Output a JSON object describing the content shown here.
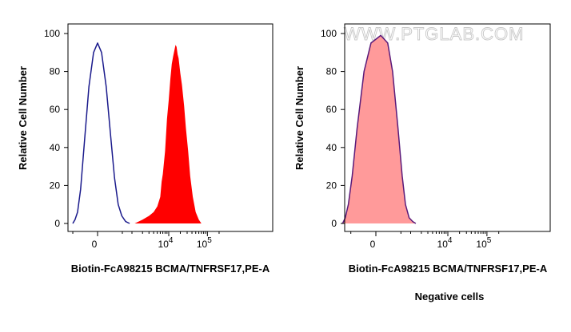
{
  "watermark": "WWW.PTGLAB.COM",
  "chart_data": [
    {
      "type": "area",
      "panel": "left",
      "xlabel": "Biotin-FcA98215 BCMA/TNFRSF17,PE-A",
      "ylabel": "Relative Cell Number",
      "x_scale": "biexponential",
      "ylim": [
        0,
        100
      ],
      "yticks": [
        0,
        20,
        40,
        60,
        80,
        100
      ],
      "xticks": [
        {
          "base": "0",
          "exp": ""
        },
        {
          "base": "10",
          "exp": "4"
        },
        {
          "base": "10",
          "exp": "5"
        }
      ],
      "grid": false,
      "series": [
        {
          "style": "outline",
          "color": "#1a1a8c",
          "x": [
            -500,
            -420,
            -340,
            -260,
            -180,
            -100,
            -40,
            0,
            40,
            100,
            180,
            260,
            360,
            480,
            640,
            850
          ],
          "y": [
            0,
            2,
            6,
            18,
            42,
            72,
            90,
            95,
            90,
            72,
            45,
            24,
            10,
            4,
            1,
            0
          ]
        },
        {
          "style": "filled",
          "color": "#ff0000",
          "x": [
            1200,
            2000,
            3000,
            4000,
            5000,
            6000,
            6500,
            7000,
            8000,
            9000,
            10000,
            11000,
            12000,
            13000,
            14000,
            15000,
            16000,
            17000,
            18000,
            20000,
            22000,
            25000,
            28000,
            32000,
            36000,
            42000,
            50000,
            60000,
            70000
          ],
          "y": [
            0,
            2,
            4,
            6,
            9,
            14,
            22,
            26,
            38,
            55,
            65,
            76,
            84,
            88,
            91,
            94,
            93,
            89,
            87,
            79,
            73,
            62,
            50,
            38,
            25,
            14,
            6,
            2,
            0
          ]
        }
      ]
    },
    {
      "type": "area",
      "panel": "right",
      "xlabel": "Biotin-FcA98215 BCMA/TNFRSF17,PE-A",
      "ylabel": "Relative Cell Number",
      "caption": "Negative cells",
      "x_scale": "biexponential",
      "ylim": [
        0,
        100
      ],
      "yticks": [
        0,
        20,
        40,
        60,
        80,
        100
      ],
      "xticks": [
        {
          "base": "0",
          "exp": ""
        },
        {
          "base": "10",
          "exp": "4"
        },
        {
          "base": "10",
          "exp": "5"
        }
      ],
      "grid": false,
      "series": [
        {
          "style": "filled",
          "color": "#ff9a9a",
          "x": [
            -900,
            -750,
            -600,
            -450,
            -300,
            -150,
            -50,
            50,
            150,
            250,
            400,
            550,
            700,
            900,
            1150,
            1400
          ],
          "y": [
            0,
            3,
            10,
            25,
            50,
            80,
            95,
            99,
            95,
            80,
            50,
            25,
            10,
            3,
            1,
            0
          ]
        },
        {
          "style": "outline",
          "color": "#5a1a7a",
          "x": [
            -900,
            -750,
            -600,
            -450,
            -300,
            -150,
            -50,
            50,
            150,
            250,
            400,
            550,
            700,
            900,
            1150,
            1400
          ],
          "y": [
            0,
            3,
            10,
            25,
            50,
            80,
            95,
            99,
            95,
            80,
            50,
            25,
            10,
            3,
            1,
            0
          ]
        }
      ]
    }
  ]
}
